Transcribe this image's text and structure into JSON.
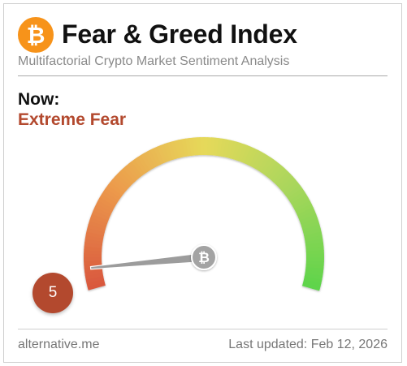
{
  "header": {
    "logo_icon": "bitcoin-icon",
    "logo_glyph": "₿",
    "title": "Fear & Greed Index",
    "subtitle": "Multifactorial Crypto Market Sentiment Analysis"
  },
  "current": {
    "label": "Now:",
    "classification": "Extreme Fear",
    "value": "5",
    "value_numeric": 5,
    "scale_min": 0,
    "scale_max": 100
  },
  "gauge": {
    "hub_icon": "bitcoin-icon",
    "hub_glyph": "₿",
    "colors": {
      "extreme_fear": "#d9583e",
      "fear": "#ec9a4c",
      "neutral": "#e6d95a",
      "greed": "#a7d65b",
      "extreme_greed": "#5fd44b",
      "badge": "#b3492e"
    }
  },
  "footer": {
    "source": "alternative.me",
    "last_updated": "Last updated: Feb 12, 2026"
  }
}
